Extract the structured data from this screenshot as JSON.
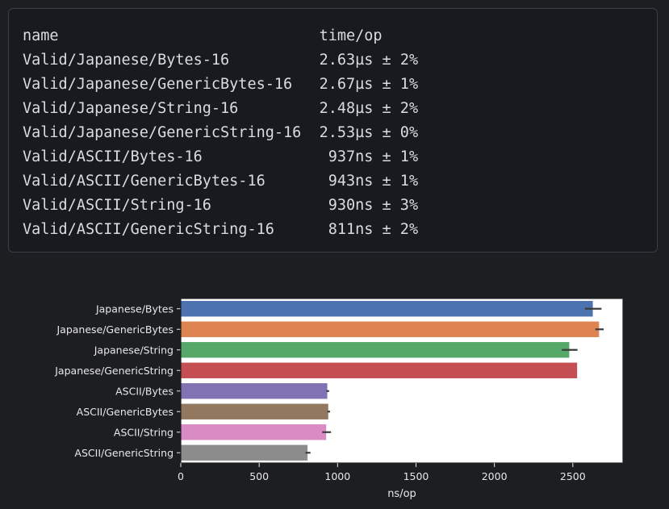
{
  "benchmark_table": {
    "header": {
      "name": "name",
      "time": "time/op"
    },
    "rows": [
      {
        "name": "Valid/Japanese/Bytes-16",
        "time": "2.63µs ± 2%"
      },
      {
        "name": "Valid/Japanese/GenericBytes-16",
        "time": "2.67µs ± 1%"
      },
      {
        "name": "Valid/Japanese/String-16",
        "time": "2.48µs ± 2%"
      },
      {
        "name": "Valid/Japanese/GenericString-16",
        "time": "2.53µs ± 0%"
      },
      {
        "name": "Valid/ASCII/Bytes-16",
        "time": "937ns ± 1%"
      },
      {
        "name": "Valid/ASCII/GenericBytes-16",
        "time": "943ns ± 1%"
      },
      {
        "name": "Valid/ASCII/String-16",
        "time": "930ns ± 3%"
      },
      {
        "name": "Valid/ASCII/GenericString-16",
        "time": "811ns ± 2%"
      }
    ]
  },
  "chart_data": {
    "type": "bar",
    "orientation": "horizontal",
    "categories": [
      "Japanese/Bytes",
      "Japanese/GenericBytes",
      "Japanese/String",
      "Japanese/GenericString",
      "ASCII/Bytes",
      "ASCII/GenericBytes",
      "ASCII/String",
      "ASCII/GenericString"
    ],
    "values": [
      2630,
      2670,
      2480,
      2530,
      937,
      943,
      930,
      811
    ],
    "errors": [
      53,
      27,
      50,
      0,
      9,
      9,
      28,
      16
    ],
    "colors": [
      "#4c72b0",
      "#dd8452",
      "#55a868",
      "#c44e52",
      "#8172b3",
      "#937860",
      "#da8bc3",
      "#8c8c8c"
    ],
    "xlabel": "ns/op",
    "ylabel": "",
    "xlim": [
      0,
      2820
    ],
    "xticks": [
      0,
      500,
      1000,
      1500,
      2000,
      2500
    ],
    "grid": false,
    "background": "#ffffff"
  }
}
